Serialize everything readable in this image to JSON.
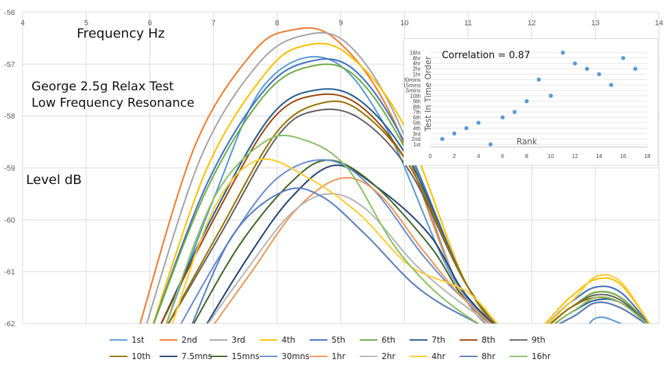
{
  "chart_data": [
    {
      "type": "line",
      "title_lines": [
        "George 2.5g Relax Test",
        "Low Frequency Resonance"
      ],
      "xlabel": "Frequency Hz",
      "ylabel": "Level dB",
      "xlim": [
        4,
        14
      ],
      "ylim": [
        -62,
        -56
      ],
      "xticks": [
        "4",
        "5",
        "6",
        "7",
        "8",
        "9",
        "10",
        "11",
        "12",
        "13",
        "14"
      ],
      "yticks": [
        "-56",
        "-57",
        "-58",
        "-59",
        "-60",
        "-61",
        "-62"
      ],
      "grid": true,
      "legend_position": "bottom",
      "series": [
        {
          "name": "1st",
          "color": "#5b9bd5",
          "x": [
            6.2,
            7.0,
            7.8,
            8.8,
            9.7,
            10.8,
            11.8,
            12.6,
            13.0,
            13.4,
            13.9
          ],
          "y": [
            -62.2,
            -59.6,
            -57.4,
            -56.9,
            -58.2,
            -61.2,
            -62.3,
            -62.4,
            -61.9,
            -62.0,
            -62.3
          ]
        },
        {
          "name": "2nd",
          "color": "#ed7d31",
          "x": [
            5.8,
            6.7,
            7.6,
            8.2,
            8.9,
            9.8,
            10.9,
            11.8,
            12.6,
            13.0,
            13.4,
            13.9
          ],
          "y": [
            -62.2,
            -58.6,
            -56.8,
            -56.35,
            -56.5,
            -58.0,
            -61.4,
            -62.3,
            -61.7,
            -61.4,
            -61.5,
            -62.1
          ]
        },
        {
          "name": "3rd",
          "color": "#a5a5a5",
          "x": [
            5.9,
            6.8,
            7.7,
            8.4,
            9.1,
            9.9,
            10.9,
            11.8,
            12.6,
            13.0,
            13.4,
            13.9
          ],
          "y": [
            -62.2,
            -58.8,
            -57.0,
            -56.45,
            -56.6,
            -58.1,
            -61.4,
            -62.3,
            -61.6,
            -61.3,
            -61.4,
            -62.1
          ]
        },
        {
          "name": "4th",
          "color": "#ffc000",
          "x": [
            6.0,
            6.9,
            7.8,
            8.4,
            9.1,
            10.0,
            11.0,
            11.8,
            12.6,
            13.0,
            13.4,
            13.9
          ],
          "y": [
            -62.2,
            -59.0,
            -57.2,
            -56.65,
            -56.8,
            -58.2,
            -61.3,
            -62.3,
            -61.5,
            -61.15,
            -61.25,
            -62.1
          ]
        },
        {
          "name": "5th",
          "color": "#4472c4",
          "x": [
            6.0,
            6.9,
            7.8,
            8.5,
            9.2,
            10.0,
            11.0,
            11.8,
            12.6,
            13.0,
            13.4,
            13.9
          ],
          "y": [
            -62.2,
            -59.3,
            -57.5,
            -56.95,
            -57.1,
            -58.5,
            -61.3,
            -62.3,
            -61.6,
            -61.3,
            -61.4,
            -62.1
          ]
        },
        {
          "name": "6th",
          "color": "#70ad47",
          "x": [
            6.0,
            6.9,
            7.8,
            8.5,
            9.2,
            10.0,
            11.0,
            11.8,
            12.6,
            13.0,
            13.4,
            13.9
          ],
          "y": [
            -62.2,
            -59.4,
            -57.6,
            -57.05,
            -57.2,
            -58.6,
            -61.3,
            -62.3,
            -61.7,
            -61.4,
            -61.5,
            -62.1
          ]
        },
        {
          "name": "7th",
          "color": "#255e91",
          "x": [
            6.1,
            7.0,
            7.9,
            8.6,
            9.3,
            10.1,
            11.0,
            11.8,
            12.6,
            13.0,
            13.4,
            13.9
          ],
          "y": [
            -62.2,
            -59.9,
            -58.0,
            -57.5,
            -57.7,
            -58.9,
            -61.3,
            -62.3,
            -61.8,
            -61.55,
            -61.6,
            -62.1
          ]
        },
        {
          "name": "8th",
          "color": "#9e480e",
          "x": [
            6.1,
            7.0,
            7.9,
            8.6,
            9.3,
            10.1,
            11.0,
            11.8,
            12.6,
            13.0,
            13.4,
            13.9
          ],
          "y": [
            -62.2,
            -60.0,
            -58.1,
            -57.6,
            -57.8,
            -59.0,
            -61.3,
            -62.3,
            -61.8,
            -61.5,
            -61.6,
            -62.1
          ]
        },
        {
          "name": "9th",
          "color": "#636363",
          "x": [
            6.2,
            7.1,
            8.0,
            8.6,
            9.3,
            10.1,
            11.0,
            11.8,
            12.6,
            13.0,
            13.4,
            13.9
          ],
          "y": [
            -62.2,
            -60.3,
            -58.4,
            -57.9,
            -58.05,
            -59.1,
            -61.3,
            -62.3,
            -61.7,
            -61.45,
            -61.55,
            -62.1
          ]
        },
        {
          "name": "10th",
          "color": "#997300",
          "x": [
            6.2,
            7.1,
            8.0,
            8.7,
            9.3,
            10.1,
            11.0,
            11.8,
            12.6,
            13.0,
            13.4,
            13.9
          ],
          "y": [
            -62.2,
            -60.2,
            -58.3,
            -57.75,
            -57.9,
            -59.0,
            -61.3,
            -62.3,
            -61.7,
            -61.5,
            -61.6,
            -62.1
          ]
        },
        {
          "name": "7.5mns",
          "color": "#264478",
          "x": [
            6.8,
            7.5,
            8.2,
            8.9,
            9.6,
            10.4,
            11.0,
            11.8,
            12.6,
            13.0,
            13.4,
            13.9
          ],
          "y": [
            -62.2,
            -60.8,
            -59.6,
            -58.95,
            -59.4,
            -60.3,
            -61.5,
            -62.3,
            -61.9,
            -61.6,
            -61.7,
            -62.1
          ]
        },
        {
          "name": "15mns",
          "color": "#43682b",
          "x": [
            6.6,
            7.4,
            8.2,
            8.8,
            9.5,
            10.4,
            11.0,
            11.8,
            12.6,
            13.0,
            13.4,
            13.9
          ],
          "y": [
            -62.2,
            -60.5,
            -59.3,
            -58.85,
            -59.3,
            -60.5,
            -61.6,
            -62.3,
            -61.9,
            -61.6,
            -61.7,
            -62.1
          ]
        },
        {
          "name": "30mns",
          "color": "#698ed0",
          "x": [
            6.4,
            7.2,
            8.0,
            8.8,
            9.5,
            10.3,
            11.0,
            11.8,
            12.6,
            13.0,
            13.4,
            13.9
          ],
          "y": [
            -62.2,
            -60.5,
            -59.2,
            -58.85,
            -59.4,
            -60.7,
            -61.6,
            -62.3,
            -61.9,
            -61.6,
            -61.7,
            -62.1
          ]
        },
        {
          "name": "1hr",
          "color": "#f1975a",
          "x": [
            6.9,
            7.6,
            8.3,
            9.0,
            9.6,
            10.3,
            11.0,
            11.8,
            12.6,
            13.0,
            13.4,
            13.9
          ],
          "y": [
            -62.2,
            -61.0,
            -59.8,
            -59.2,
            -59.5,
            -60.6,
            -61.6,
            -62.3,
            -61.9,
            -61.6,
            -61.7,
            -62.1
          ]
        },
        {
          "name": "2hr",
          "color": "#b7b7b7",
          "x": [
            6.8,
            7.5,
            8.2,
            8.8,
            9.4,
            10.2,
            11.0,
            11.8,
            12.6,
            13.0,
            13.4,
            13.9
          ],
          "y": [
            -62.2,
            -61.0,
            -59.9,
            -59.5,
            -59.8,
            -60.9,
            -61.7,
            -62.3,
            -61.9,
            -61.6,
            -61.7,
            -62.1
          ]
        },
        {
          "name": "4hr",
          "color": "#ffcd33",
          "x": [
            6.3,
            7.0,
            7.7,
            8.5,
            9.3,
            10.1,
            11.0,
            11.8,
            12.6,
            13.0,
            13.4,
            13.9
          ],
          "y": [
            -62.2,
            -59.8,
            -58.85,
            -59.2,
            -59.9,
            -60.9,
            -61.4,
            -62.3,
            -61.6,
            -61.1,
            -61.2,
            -62.1
          ]
        },
        {
          "name": "8hr",
          "color": "#5b7fbf",
          "x": [
            6.6,
            7.3,
            8.1,
            8.7,
            9.4,
            10.2,
            11.0,
            11.8,
            12.6,
            13.0,
            13.4,
            13.9
          ],
          "y": [
            -62.2,
            -60.3,
            -59.45,
            -59.55,
            -60.3,
            -61.3,
            -61.9,
            -62.3,
            -61.9,
            -61.6,
            -61.7,
            -62.1
          ]
        },
        {
          "name": "16hr",
          "color": "#8cc168",
          "x": [
            6.2,
            7.0,
            7.8,
            8.4,
            9.1,
            9.9,
            10.8,
            11.8,
            12.6,
            13.0,
            13.4,
            13.9
          ],
          "y": [
            -62.2,
            -59.6,
            -58.5,
            -58.45,
            -59.0,
            -60.6,
            -61.7,
            -62.3,
            -61.8,
            -61.5,
            -61.6,
            -62.1
          ]
        }
      ]
    },
    {
      "type": "scatter",
      "title": "Correlation = 0.87",
      "xlabel": "Rank",
      "ylabel": "Test In Time Order",
      "xlim": [
        0,
        18
      ],
      "xticks": [
        "0",
        "2",
        "4",
        "6",
        "8",
        "10",
        "12",
        "14",
        "16",
        "18"
      ],
      "ycategories": [
        "1st",
        "2nd",
        "3rd",
        "4th",
        "5th",
        "6th",
        "7th",
        "8th",
        "9th",
        "10th",
        "7.5mins",
        "15mins",
        "30mins",
        "1hr",
        "2hr",
        "4hr",
        "8hr",
        "16hr"
      ],
      "point_color": "#5b9bd5",
      "points": [
        {
          "x": 1,
          "y": "2nd"
        },
        {
          "x": 2,
          "y": "3rd"
        },
        {
          "x": 3,
          "y": "4th"
        },
        {
          "x": 4,
          "y": "5th"
        },
        {
          "x": 5,
          "y": "1st"
        },
        {
          "x": 6,
          "y": "6th"
        },
        {
          "x": 7,
          "y": "7th"
        },
        {
          "x": 8,
          "y": "9th"
        },
        {
          "x": 9,
          "y": "30mins"
        },
        {
          "x": 10,
          "y": "10th"
        },
        {
          "x": 11,
          "y": "16hr"
        },
        {
          "x": 12,
          "y": "4hr"
        },
        {
          "x": 13,
          "y": "2hr"
        },
        {
          "x": 14,
          "y": "1hr"
        },
        {
          "x": 15,
          "y": "15mins"
        },
        {
          "x": 16,
          "y": "8hr"
        },
        {
          "x": 17,
          "y": "2hr"
        }
      ]
    }
  ]
}
